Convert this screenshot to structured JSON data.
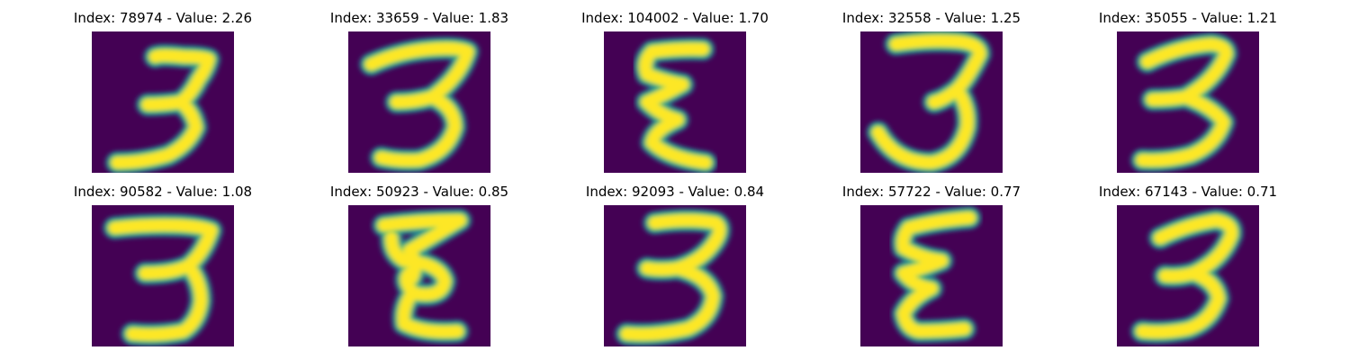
{
  "figure": {
    "colors": {
      "background": "#440154",
      "dark_teal": "#2a788e",
      "teal": "#21918c",
      "green": "#5ec962",
      "light_green": "#addc30",
      "yellow": "#fde725"
    },
    "panels": [
      {
        "title": "Index: 78974 - Value: 2.26",
        "strokes": [
          "M12.5,5 Q13.5,4.5 18,5 Q21.5,5 23,5.5 Q22.5,7.5 21,9.5 Q19.5,12.5 17.5,14 Q14,14.5 11,14.5 M17.5,14 Q20,16 20.5,19 Q19,22.5 15,24.5 Q10,26 5,26"
        ]
      },
      {
        "title": "Index: 33659 - Value: 1.83",
        "strokes": [
          "M4.5,6.5 Q10,4 16,3.5 Q21.5,3 23.5,4 Q22,9 16.5,13 Q13,14 9.5,14 M16.5,13 Q21,15 21,19 Q19.5,24 14,25.5 Q10,25.8 6.5,25"
        ]
      },
      {
        "title": "Index: 104002 - Value: 1.70",
        "strokes": [
          "M19.5,3.5 Q15,3.3 9.5,4 Q7.5,6 8.5,8.5 Q12.5,10 15.5,10.5 Q12,12.5 8.5,14 Q11,16.5 14.5,17.5 Q10,19.5 9.5,22 Q12.5,25 20,26"
        ]
      },
      {
        "title": "Index: 32558 - Value: 1.25",
        "strokes": [
          "M7,2.5 Q14,1.5 19.5,2 Q23.5,2.5 23.5,4.5 Q21,9.5 19,11.5 Q16.5,13.5 14.5,14 M19,11.5 Q21.5,15 21,19 Q19.5,25 14,26 Q7,26 3.5,20"
        ]
      },
      {
        "title": "Index: 35055 - Value: 1.21",
        "strokes": [
          "M6,6 Q12,3 18.5,2.5 Q21.5,2.8 21.5,4.5 Q19.5,9.5 13.5,13 Q10.5,13.5 7,13.5 M13.5,13 Q19,15 21,18 Q19.5,22.5 14.5,24.5 Q10,25.8 5,25.5"
        ]
      },
      {
        "title": "Index: 90582 - Value: 1.08",
        "strokes": [
          "M4.5,4.5 Q11,3.8 17,4 Q21.5,4.2 23.5,5 Q22,9.5 19,12 Q16,13.5 10.5,13.5 M19,12 Q21.5,15 21.5,19 Q21,23 18,25 Q13,26 8,25.5"
        ]
      },
      {
        "title": "Index: 50923 - Value: 0.85",
        "strokes": [
          "M7,4 Q14.5,3 22,3 Q17,6 12,9 Q14,11.5 12.5,14.5 M8.5,6.5 Q8.5,9.5 11,11 Q18,11.5 19,15 Q18.5,18.5 13,17.5 Q10.5,15 12,13.5 M12.5,17.5 Q10.5,20.5 11,23.5 Q15,25.5 21.5,25"
        ]
      },
      {
        "title": "Index: 92093 - Value: 0.84",
        "strokes": [
          "M10,3.5 Q17,2.5 22,3.5 Q23.5,4.5 22,7 Q19.5,11 14.5,12.5 Q11,13 8.5,12.5 M14.5,12.5 Q20.5,14 21.5,18 Q21,22.5 16.5,24.5 Q10,26 4.5,25.5"
        ]
      },
      {
        "title": "Index: 57722 - Value: 0.77",
        "strokes": [
          "M21.5,2.5 Q15,3 9.5,4.5 Q8,6.5 8.5,8.5 Q12,10.5 16,11 Q12.5,12.5 8.5,13.5 Q10.5,16 14,16.5 Q10,18.5 8.5,21.5 Q9,24.5 11.5,25 Q16,25 20.5,24.5"
        ]
      },
      {
        "title": "Index: 67143 - Value: 0.71",
        "strokes": [
          "M8.5,6.5 Q13.5,4 19.5,3 Q23,3.5 22.5,6 Q20.5,11 15,13.5 Q12,14.3 9.5,14 M15,13.5 Q19.5,15 20,18.5 Q18.5,23 14,24.5 Q9,25.5 5,25"
        ]
      }
    ]
  }
}
